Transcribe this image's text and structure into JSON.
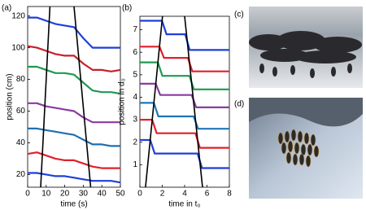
{
  "chart_data": [
    {
      "type": "line",
      "label": "(a)",
      "x_label": "time (s)",
      "y_label": "position (cm)",
      "xlim": [
        0,
        50
      ],
      "xticks": [
        0,
        10,
        20,
        30,
        40,
        50
      ],
      "ylim": [
        12,
        126
      ],
      "yticks": [
        20,
        40,
        60,
        80,
        100,
        120
      ],
      "series": [
        {
          "color": "#1f3fd8",
          "x": [
            0,
            5,
            10,
            15,
            20,
            25,
            30,
            35,
            40,
            45,
            50
          ],
          "values": [
            119,
            119,
            117,
            115,
            114,
            113,
            106,
            100,
            100,
            100,
            100
          ]
        },
        {
          "color": "#c4202c",
          "x": [
            0,
            5,
            10,
            15,
            20,
            25,
            30,
            35,
            40,
            45,
            50
          ],
          "values": [
            101,
            100,
            98,
            96,
            95,
            95,
            90,
            86,
            86,
            85,
            86
          ]
        },
        {
          "color": "#1e9a50",
          "x": [
            0,
            5,
            10,
            15,
            20,
            25,
            30,
            35,
            40,
            45,
            50
          ],
          "values": [
            88,
            88,
            86,
            84,
            84,
            83,
            78,
            73,
            72,
            72,
            71
          ]
        },
        {
          "color": "#8a3aa0",
          "x": [
            0,
            5,
            10,
            15,
            20,
            25,
            30,
            35,
            40,
            45,
            50
          ],
          "values": [
            65,
            65,
            63,
            62,
            61,
            60,
            56,
            53,
            53,
            53,
            53
          ]
        },
        {
          "color": "#1f6fb0",
          "x": [
            0,
            5,
            10,
            15,
            20,
            25,
            30,
            35,
            40,
            45,
            50
          ],
          "values": [
            49,
            49,
            48,
            47,
            46,
            45,
            42,
            39,
            39,
            38,
            38
          ]
        },
        {
          "color": "#e0202a",
          "x": [
            0,
            5,
            10,
            15,
            20,
            25,
            30,
            35,
            40,
            45,
            50
          ],
          "values": [
            33,
            34,
            32,
            30,
            29,
            29,
            27,
            25,
            24,
            24,
            24
          ]
        },
        {
          "color": "#1f3fd8",
          "x": [
            0,
            5,
            10,
            15,
            20,
            25,
            30,
            35,
            40,
            45,
            50
          ],
          "values": [
            21,
            21,
            20,
            19,
            19,
            18,
            17,
            16,
            16,
            16,
            15
          ]
        },
        {
          "color": "#000000",
          "x": [
            7,
            12
          ],
          "values": [
            12,
            126
          ]
        },
        {
          "color": "#000000",
          "x": [
            25,
            34
          ],
          "values": [
            126,
            12
          ]
        }
      ]
    },
    {
      "type": "line",
      "label": "(b)",
      "x_label": "time in t₀",
      "y_label": "position in d₀",
      "xlim": [
        0,
        8
      ],
      "xticks": [
        0,
        2,
        4,
        6,
        8
      ],
      "ylim": [
        0,
        7.6
      ],
      "yticks": [
        1,
        2,
        3,
        4,
        5,
        6,
        7
      ],
      "series": [
        {
          "color": "#1f3fd8",
          "x": [
            0,
            0.92,
            1.32,
            5.16,
            5.56,
            8
          ],
          "values": [
            2.1,
            2.1,
            1.5,
            1.5,
            0.85,
            0.85
          ]
        },
        {
          "color": "#e0202a",
          "x": [
            0,
            1.1,
            1.5,
            4.97,
            5.37,
            8
          ],
          "values": [
            3.0,
            3.0,
            2.4,
            2.4,
            1.75,
            1.75
          ]
        },
        {
          "color": "#1f77b4",
          "x": [
            0,
            1.25,
            1.65,
            4.81,
            5.21,
            8
          ],
          "values": [
            3.75,
            3.75,
            3.15,
            3.15,
            2.6,
            2.6
          ]
        },
        {
          "color": "#8a3aa0",
          "x": [
            0,
            1.42,
            1.82,
            4.63,
            5.03,
            8
          ],
          "values": [
            4.6,
            4.6,
            4.1,
            4.1,
            3.55,
            3.55
          ]
        },
        {
          "color": "#1e9a50",
          "x": [
            0,
            1.61,
            2.01,
            4.43,
            4.83,
            8
          ],
          "values": [
            5.55,
            5.55,
            4.95,
            4.95,
            4.35,
            4.35
          ]
        },
        {
          "color": "#e0202a",
          "x": [
            0,
            1.75,
            2.15,
            4.29,
            4.69,
            8
          ],
          "values": [
            6.25,
            6.25,
            5.75,
            5.75,
            5.15,
            5.15
          ]
        },
        {
          "color": "#1f3fd8",
          "x": [
            0,
            1.98,
            2.38,
            4.05,
            4.45,
            8
          ],
          "values": [
            7.4,
            7.4,
            6.8,
            6.8,
            6.1,
            6.1
          ]
        },
        {
          "color": "#000000",
          "x": [
            0.5,
            2.02
          ],
          "values": [
            0,
            7.6
          ]
        },
        {
          "color": "#000000",
          "x": [
            5.6,
            4.0
          ],
          "values": [
            0,
            7.6
          ]
        }
      ]
    }
  ],
  "photos": [
    {
      "label": "(c)"
    },
    {
      "label": "(d)"
    }
  ]
}
